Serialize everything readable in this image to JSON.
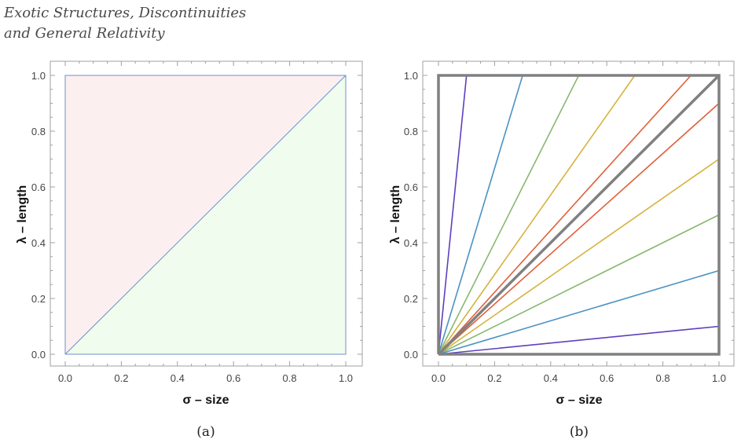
{
  "header": {
    "line1": "Exotic Structures, Discontinuities",
    "line2": "and General Relativity"
  },
  "colors": {
    "frame": "#a0a0a0",
    "upper_fill": "#fcefef",
    "lower_fill": "#effcee",
    "edge_blue": "#6f8fcf",
    "heavy_gray": "#808080",
    "purple": "#5e3fbe",
    "blue": "#4b92c3",
    "green": "#86b96f",
    "yellow": "#d6b23d",
    "red": "#e0603a"
  },
  "chart_data": [
    {
      "type": "area",
      "caption": "(a)",
      "xlabel": "σ – size",
      "ylabel": "λ – length",
      "xlim": [
        0,
        1
      ],
      "ylim": [
        0,
        1
      ],
      "xticks": [
        "0.0",
        "0.2",
        "0.4",
        "0.6",
        "0.8",
        "1.0"
      ],
      "yticks": [
        "0.0",
        "0.2",
        "0.4",
        "0.6",
        "0.8",
        "1.0"
      ],
      "regions": [
        {
          "polygon": [
            [
              0,
              0
            ],
            [
              0,
              1
            ],
            [
              1,
              1
            ]
          ],
          "color": "upper_fill"
        },
        {
          "polygon": [
            [
              0,
              0
            ],
            [
              1,
              0
            ],
            [
              1,
              1
            ]
          ],
          "color": "lower_fill"
        }
      ],
      "outline": {
        "x": [
          0,
          1,
          1,
          0,
          0
        ],
        "y": [
          0,
          0,
          1,
          1,
          0
        ],
        "color": "edge_blue"
      },
      "diagonal": {
        "x": [
          0,
          1
        ],
        "y": [
          0,
          1
        ],
        "color": "edge_blue"
      }
    },
    {
      "type": "line",
      "caption": "(b)",
      "xlabel": "σ – size",
      "ylabel": "λ – length",
      "xlim": [
        0,
        1
      ],
      "ylim": [
        0,
        1
      ],
      "xticks": [
        "0.0",
        "0.2",
        "0.4",
        "0.6",
        "0.8",
        "1.0"
      ],
      "yticks": [
        "0.0",
        "0.2",
        "0.4",
        "0.6",
        "0.8",
        "1.0"
      ],
      "box": {
        "x": [
          0,
          1,
          1,
          0,
          0
        ],
        "y": [
          0,
          0,
          1,
          1,
          0
        ],
        "color": "heavy_gray"
      },
      "diagonal": {
        "x": [
          0,
          1
        ],
        "y": [
          0,
          1
        ],
        "color": "heavy_gray"
      },
      "series": [
        {
          "x": [
            0,
            0.1
          ],
          "y": [
            0,
            1.0
          ],
          "color": "purple"
        },
        {
          "x": [
            0,
            0.3
          ],
          "y": [
            0,
            1.0
          ],
          "color": "blue"
        },
        {
          "x": [
            0,
            0.5
          ],
          "y": [
            0,
            1.0
          ],
          "color": "green"
        },
        {
          "x": [
            0,
            0.7
          ],
          "y": [
            0,
            1.0
          ],
          "color": "yellow"
        },
        {
          "x": [
            0,
            0.9
          ],
          "y": [
            0,
            1.0
          ],
          "color": "red"
        },
        {
          "x": [
            0,
            1.0
          ],
          "y": [
            0,
            0.9
          ],
          "color": "red"
        },
        {
          "x": [
            0,
            1.0
          ],
          "y": [
            0,
            0.7
          ],
          "color": "yellow"
        },
        {
          "x": [
            0,
            1.0
          ],
          "y": [
            0,
            0.5
          ],
          "color": "green"
        },
        {
          "x": [
            0,
            1.0
          ],
          "y": [
            0,
            0.3
          ],
          "color": "blue"
        },
        {
          "x": [
            0,
            1.0
          ],
          "y": [
            0,
            0.1
          ],
          "color": "purple"
        }
      ]
    }
  ]
}
